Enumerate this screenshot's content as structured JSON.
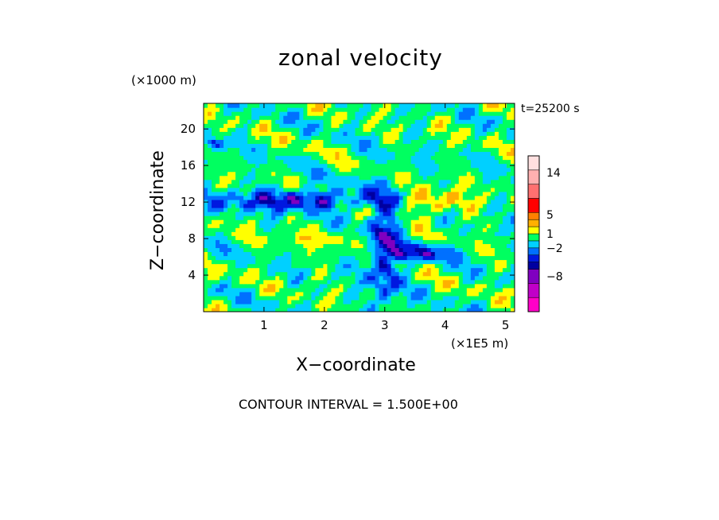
{
  "chart_data": {
    "type": "heatmap",
    "title": "zonal velocity",
    "time_label": "t=25200 s",
    "xlabel": "X−coordinate",
    "ylabel": "Z−coordinate",
    "x_unit_label": "(×1E5 m)",
    "y_unit_label": "(×1000 m)",
    "xlim": [
      0,
      5.15
    ],
    "ylim": [
      0,
      22.8
    ],
    "x_ticks": [
      1,
      2,
      3,
      4,
      5
    ],
    "x_tick_labels": [
      "1",
      "2",
      "3",
      "4",
      "5"
    ],
    "y_ticks": [
      4,
      8,
      12,
      16,
      20
    ],
    "y_tick_labels": [
      "4",
      "8",
      "12",
      "16",
      "20"
    ],
    "contour_interval_text": "CONTOUR INTERVAL = 1.500E+00",
    "colorbar": {
      "levels": [
        -15.5,
        -12.5,
        -9.5,
        -6.5,
        -5,
        -3.5,
        -2,
        -0.5,
        1,
        2.5,
        4,
        5.5,
        8.5,
        11.5,
        14.5,
        17.5
      ],
      "colors": [
        "#ff00c8",
        "#c000c8",
        "#8000c0",
        "#0000a0",
        "#0018e0",
        "#0070ff",
        "#00d0ff",
        "#00ff60",
        "#ffff00",
        "#ffb000",
        "#ff8000",
        "#ff0000",
        "#ff7070",
        "#ffb0b0",
        "#ffe0e0"
      ],
      "tick_values": [
        14,
        5,
        1,
        -2,
        -8
      ],
      "tick_labels": [
        "14",
        "5",
        "1",
        "−2",
        "−8"
      ]
    },
    "field_features": [
      {
        "name": "upper-negative-jet",
        "x": [
          0.0,
          3.0
        ],
        "z": [
          11.0,
          13.5
        ],
        "value": -7
      },
      {
        "name": "upper-left-negative",
        "x": [
          0.0,
          0.4
        ],
        "z": [
          18.0,
          19.0
        ],
        "value": -6
      },
      {
        "name": "lower-right-negative",
        "x": [
          3.1,
          4.2
        ],
        "z": [
          5.5,
          7.5
        ],
        "value": -6
      },
      {
        "name": "central-negative-plume",
        "x": [
          2.7,
          3.3
        ],
        "z": [
          0.0,
          14.0
        ],
        "value": -7
      },
      {
        "name": "upper-right-positive",
        "x": [
          3.1,
          4.5
        ],
        "z": [
          10.5,
          13.5
        ],
        "value": 4
      },
      {
        "name": "mid-level-positive",
        "x": [
          1.0,
          3.0
        ],
        "z": [
          7.0,
          9.0
        ],
        "value": 2
      }
    ]
  }
}
